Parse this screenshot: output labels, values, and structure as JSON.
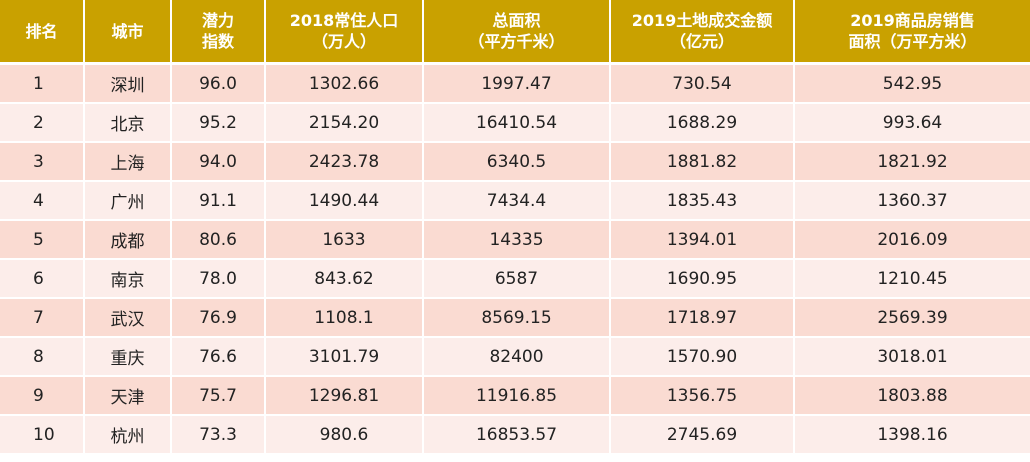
{
  "headers": [
    {
      "key": "rank",
      "lines": [
        "排名"
      ]
    },
    {
      "key": "city",
      "lines": [
        "城市"
      ]
    },
    {
      "key": "potential",
      "lines": [
        "潜力",
        "指数"
      ]
    },
    {
      "key": "population",
      "lines": [
        "2018常住人口",
        "（万人）"
      ]
    },
    {
      "key": "area",
      "lines": [
        "总面积",
        "（平方千米）"
      ]
    },
    {
      "key": "land_sales",
      "lines": [
        "2019土地成交金额",
        "（亿元）"
      ]
    },
    {
      "key": "housing_sales",
      "lines": [
        "2019商品房销售",
        "面积（万平方米）"
      ]
    }
  ],
  "rows": [
    [
      "1",
      "深圳",
      "96.0",
      "1302.66",
      "1997.47",
      "730.54",
      "542.95"
    ],
    [
      "2",
      "北京",
      "95.2",
      "2154.20",
      "16410.54",
      "1688.29",
      "993.64"
    ],
    [
      "3",
      "上海",
      "94.0",
      "2423.78",
      "6340.5",
      "1881.82",
      "1821.92"
    ],
    [
      "4",
      "广州",
      "91.1",
      "1490.44",
      "7434.4",
      "1835.43",
      "1360.37"
    ],
    [
      "5",
      "成都",
      "80.6",
      "1633",
      "14335",
      "1394.01",
      "2016.09"
    ],
    [
      "6",
      "南京",
      "78.0",
      "843.62",
      "6587",
      "1690.95",
      "1210.45"
    ],
    [
      "7",
      "武汉",
      "76.9",
      "1108.1",
      "8569.15",
      "1718.97",
      "2569.39"
    ],
    [
      "8",
      "重庆",
      "76.6",
      "3101.79",
      "82400",
      "1570.90",
      "3018.01"
    ],
    [
      "9",
      "天津",
      "75.7",
      "1296.81",
      "11916.85",
      "1356.75",
      "1803.88"
    ],
    [
      "10",
      "杭州",
      "73.3",
      "980.6",
      "16853.57",
      "2745.69",
      "1398.16"
    ]
  ],
  "colors": {
    "header_bg": "#c9a100",
    "header_text": "#ffffff",
    "row_odd_bg": "#fadbd2",
    "row_even_bg": "#fcedea",
    "cell_text": "#222222"
  }
}
